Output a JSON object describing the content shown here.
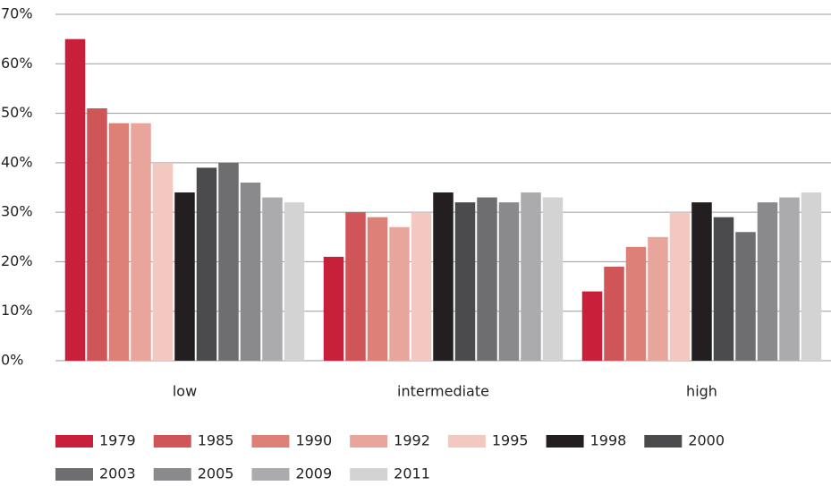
{
  "chart_data": {
    "type": "bar",
    "categories": [
      "low",
      "intermediate",
      "high"
    ],
    "series": [
      {
        "name": "1979",
        "color": "#c8203b",
        "values": [
          65,
          21,
          14
        ]
      },
      {
        "name": "1985",
        "color": "#d05559",
        "values": [
          51,
          30,
          19
        ]
      },
      {
        "name": "1990",
        "color": "#dd8078",
        "values": [
          48,
          29,
          23
        ]
      },
      {
        "name": "1992",
        "color": "#e8a59c",
        "values": [
          48,
          27,
          25
        ]
      },
      {
        "name": "1995",
        "color": "#f2c8c0",
        "values": [
          40,
          30,
          30
        ]
      },
      {
        "name": "1998",
        "color": "#231f20",
        "values": [
          34,
          34,
          32
        ]
      },
      {
        "name": "2000",
        "color": "#4b4b4d",
        "values": [
          39,
          32,
          29
        ]
      },
      {
        "name": "2003",
        "color": "#6e6e70",
        "values": [
          40,
          33,
          26
        ]
      },
      {
        "name": "2005",
        "color": "#8a8a8c",
        "values": [
          36,
          32,
          32
        ]
      },
      {
        "name": "2009",
        "color": "#ababad",
        "values": [
          33,
          34,
          33
        ]
      },
      {
        "name": "2011",
        "color": "#d3d3d4",
        "values": [
          32,
          33,
          34
        ]
      }
    ],
    "ylim": [
      0,
      70
    ],
    "yticks": [
      {
        "value": 0,
        "label": "0%"
      },
      {
        "value": 10,
        "label": "10%"
      },
      {
        "value": 20,
        "label": "20%"
      },
      {
        "value": 30,
        "label": "30%"
      },
      {
        "value": 40,
        "label": "40%"
      },
      {
        "value": 50,
        "label": "50%"
      },
      {
        "value": 60,
        "label": "60%"
      },
      {
        "value": 70,
        "label": "70%"
      }
    ],
    "grid": true,
    "legend": "bottom"
  }
}
